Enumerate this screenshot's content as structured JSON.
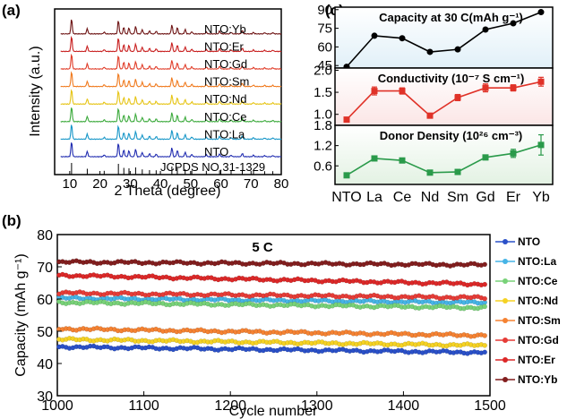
{
  "chart_data": [
    {
      "panel": "(a)",
      "type": "line",
      "xlabel": "2 Theta (degree)",
      "ylabel": "Intensity (a.u.)",
      "xlim": [
        5,
        80
      ],
      "xticks": [
        10,
        20,
        30,
        40,
        50,
        60,
        70,
        80
      ],
      "reference": "JCPDS NO.31-1329",
      "series": [
        {
          "name": "NTO",
          "color": "#1f2bb0"
        },
        {
          "name": "NTO:La",
          "color": "#1696c8"
        },
        {
          "name": "NTO:Ce",
          "color": "#3caa3c"
        },
        {
          "name": "NTO:Nd",
          "color": "#e6c414"
        },
        {
          "name": "NTO:Sm",
          "color": "#f07a1e"
        },
        {
          "name": "NTO:Gd",
          "color": "#e03c28"
        },
        {
          "name": "NTO:Er",
          "color": "#c81e1e"
        },
        {
          "name": "NTO:Yb",
          "color": "#6e1414"
        }
      ],
      "reference_peaks": [
        10.6,
        15.8,
        21.4,
        26.1,
        27.9,
        29.6,
        31.8,
        34.0,
        36.4,
        38.6,
        43.8,
        45.6,
        48.2,
        50.4,
        55.2,
        59.6,
        63.4,
        67.1,
        70.8,
        74.5,
        77.2
      ],
      "peak_heights": [
        1.0,
        0.35,
        0.12,
        0.9,
        0.45,
        0.4,
        0.5,
        0.28,
        0.2,
        0.18,
        0.6,
        0.42,
        0.3,
        0.15,
        0.12,
        0.18,
        0.1,
        0.22,
        0.1,
        0.08,
        0.08
      ]
    },
    {
      "panel": "(c)",
      "type": "line",
      "categories": [
        "NTO",
        "La",
        "Ce",
        "Nd",
        "Sm",
        "Gd",
        "Er",
        "Yb"
      ],
      "subplots": [
        {
          "title": "Capacity at 30 C(mAh g⁻¹)",
          "ylim": [
            43,
            92
          ],
          "yticks": [
            "45",
            "60",
            "75",
            "90"
          ],
          "ytick_values": [
            45,
            60,
            75,
            90
          ],
          "values": [
            44,
            69,
            67,
            56,
            58,
            74,
            79,
            88
          ],
          "color": "#000000",
          "background": "#e1f0f8"
        },
        {
          "title": "Conductivity (10⁻⁷ S cm⁻¹)",
          "ylim": [
            0.75,
            2.05
          ],
          "yticks": [
            "1.0",
            "1.5",
            "2.0"
          ],
          "ytick_values": [
            1.0,
            1.5,
            2.0
          ],
          "values": [
            0.88,
            1.53,
            1.53,
            0.97,
            1.38,
            1.6,
            1.6,
            1.74
          ],
          "errors": [
            0.03,
            0.09,
            0.07,
            0.02,
            0.07,
            0.09,
            0.07,
            0.1
          ],
          "color": "#e03228",
          "background": "#fbe6e6"
        },
        {
          "title": "Donor Density (10²⁶ cm⁻³)",
          "ylim": [
            0.05,
            1.8
          ],
          "yticks": [
            "0.6",
            "1.2",
            "1.8"
          ],
          "ytick_values": [
            0.6,
            1.2,
            1.8
          ],
          "values": [
            0.32,
            0.82,
            0.76,
            0.4,
            0.42,
            0.85,
            0.97,
            1.22
          ],
          "errors": [
            0.03,
            0.05,
            0.05,
            0.04,
            0.05,
            0.07,
            0.12,
            0.3
          ],
          "color": "#2a9a4a",
          "background": "#e3f2e3"
        }
      ]
    },
    {
      "panel": "(b)",
      "type": "scatter",
      "title": "5 C",
      "xlabel": "Cycle number",
      "ylabel": "Capacity (mAh g⁻¹)",
      "xlim": [
        1000,
        1500
      ],
      "ylim": [
        30,
        80
      ],
      "xticks": [
        1000,
        1100,
        1200,
        1300,
        1400,
        1500
      ],
      "yticks": [
        30,
        40,
        50,
        60,
        70,
        80
      ],
      "series": [
        {
          "name": "NTO",
          "color": "#2a50c8",
          "start": 45.2,
          "end": 43.4
        },
        {
          "name": "NTO:La",
          "color": "#46b4e6",
          "start": 60.3,
          "end": 58.9
        },
        {
          "name": "NTO:Ce",
          "color": "#78d278",
          "start": 59.0,
          "end": 57.3
        },
        {
          "name": "NTO:Nd",
          "color": "#f5d223",
          "start": 47.5,
          "end": 45.6
        },
        {
          "name": "NTO:Sm",
          "color": "#f58232",
          "start": 50.8,
          "end": 48.7
        },
        {
          "name": "NTO:Gd",
          "color": "#e63c37",
          "start": 61.9,
          "end": 60.4
        },
        {
          "name": "NTO:Er",
          "color": "#dc2828",
          "start": 67.4,
          "end": 64.6
        },
        {
          "name": "NTO:Yb",
          "color": "#821e1e",
          "start": 71.5,
          "end": 70.6
        }
      ]
    }
  ],
  "labels": {
    "panel_a": "(a)",
    "panel_b": "(b)",
    "panel_c": "(c)"
  }
}
